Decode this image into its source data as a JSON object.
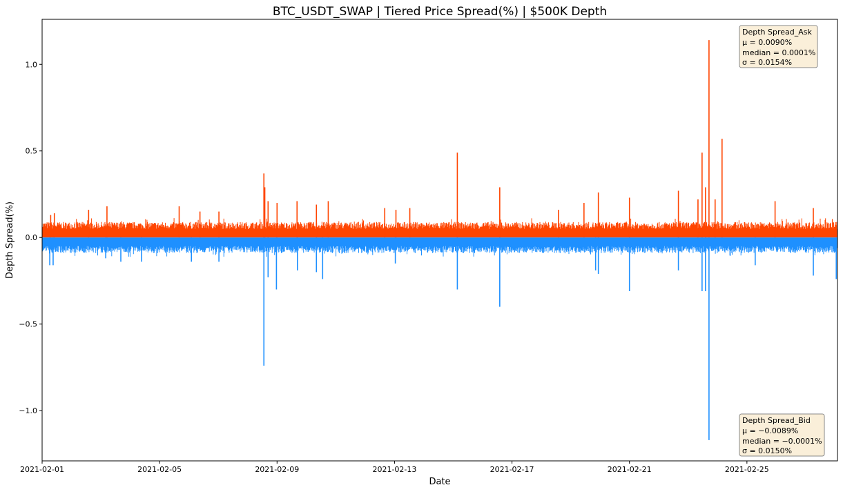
{
  "chart_data": {
    "type": "line",
    "title": "BTC_USDT_SWAP | Tiered Price Spread(%) | $500K Depth",
    "xlabel": "Date",
    "ylabel": "Depth Spread(%)",
    "xlim": [
      "2021-02-01 00:00",
      "2021-02-28 02:00"
    ],
    "ylim": [
      -1.29,
      1.26
    ],
    "x_ticks": [
      "2021-02-01",
      "2021-02-05",
      "2021-02-09",
      "2021-02-13",
      "2021-02-17",
      "2021-02-21",
      "2021-02-25"
    ],
    "y_ticks": [
      -1.0,
      -0.5,
      0.0,
      0.5,
      1.0
    ],
    "y_tick_labels": [
      "−1.0",
      "−0.5",
      "0.0",
      "0.5",
      "1.0"
    ],
    "grid": false,
    "series": [
      {
        "name": "Depth Spread_Ask",
        "color": "#ff4500",
        "typical_range": [
          0.0,
          0.09
        ],
        "peaks": [
          [
            "2021-02-01 07:00",
            0.13
          ],
          [
            "2021-02-01 10:00",
            0.14
          ],
          [
            "2021-02-02 14:00",
            0.16
          ],
          [
            "2021-02-03 05:00",
            0.18
          ],
          [
            "2021-02-05 16:00",
            0.18
          ],
          [
            "2021-02-06 09:00",
            0.15
          ],
          [
            "2021-02-07 00:30",
            0.15
          ],
          [
            "2021-02-08 13:15",
            0.37
          ],
          [
            "2021-02-08 14:00",
            0.29
          ],
          [
            "2021-02-08 16:40",
            0.21
          ],
          [
            "2021-02-09 00:00",
            0.2
          ],
          [
            "2021-02-09 16:20",
            0.21
          ],
          [
            "2021-02-10 08:10",
            0.19
          ],
          [
            "2021-02-10 17:50",
            0.21
          ],
          [
            "2021-02-12 16:00",
            0.17
          ],
          [
            "2021-02-13 01:10",
            0.16
          ],
          [
            "2021-02-13 12:30",
            0.17
          ],
          [
            "2021-02-15 03:20",
            0.49
          ],
          [
            "2021-02-16 14:00",
            0.29
          ],
          [
            "2021-02-18 14:00",
            0.16
          ],
          [
            "2021-02-19 10:50",
            0.2
          ],
          [
            "2021-02-19 22:35",
            0.26
          ],
          [
            "2021-02-21 00:00",
            0.23
          ],
          [
            "2021-02-22 16:00",
            0.27
          ],
          [
            "2021-02-23 08:00",
            0.22
          ],
          [
            "2021-02-23 11:20",
            0.49
          ],
          [
            "2021-02-23 14:10",
            0.29
          ],
          [
            "2021-02-23 17:00",
            1.14
          ],
          [
            "2021-02-23 22:00",
            0.22
          ],
          [
            "2021-02-24 03:40",
            0.57
          ],
          [
            "2021-02-25 23:00",
            0.21
          ],
          [
            "2021-02-27 06:15",
            0.17
          ]
        ],
        "stats": {
          "label": "Depth Spread_Ask",
          "mean": "μ = 0.0090%",
          "median": "median = 0.0001%",
          "std": "σ = 0.0154%"
        }
      },
      {
        "name": "Depth Spread_Bid",
        "color": "#1e90ff",
        "typical_range": [
          -0.09,
          0.0
        ],
        "peaks": [
          [
            "2021-02-01 06:15",
            -0.16
          ],
          [
            "2021-02-01 09:00",
            -0.16
          ],
          [
            "2021-02-03 04:00",
            -0.12
          ],
          [
            "2021-02-03 16:20",
            -0.14
          ],
          [
            "2021-02-04 09:20",
            -0.14
          ],
          [
            "2021-02-06 02:00",
            -0.14
          ],
          [
            "2021-02-07 00:30",
            -0.14
          ],
          [
            "2021-02-08 13:15",
            -0.74
          ],
          [
            "2021-02-08 16:40",
            -0.23
          ],
          [
            "2021-02-08 23:30",
            -0.3
          ],
          [
            "2021-02-09 16:40",
            -0.19
          ],
          [
            "2021-02-10 08:10",
            -0.2
          ],
          [
            "2021-02-10 13:15",
            -0.24
          ],
          [
            "2021-02-13 00:40",
            -0.15
          ],
          [
            "2021-02-15 03:20",
            -0.3
          ],
          [
            "2021-02-16 14:00",
            -0.4
          ],
          [
            "2021-02-19 20:20",
            -0.19
          ],
          [
            "2021-02-19 22:35",
            -0.21
          ],
          [
            "2021-02-21 00:00",
            -0.31
          ],
          [
            "2021-02-22 16:00",
            -0.19
          ],
          [
            "2021-02-23 11:20",
            -0.31
          ],
          [
            "2021-02-23 14:10",
            -0.31
          ],
          [
            "2021-02-23 17:00",
            -1.17
          ],
          [
            "2021-02-25 06:45",
            -0.16
          ],
          [
            "2021-02-27 06:15",
            -0.22
          ],
          [
            "2021-02-28 01:00",
            -0.24
          ]
        ],
        "stats": {
          "label": "Depth Spread_Bid",
          "mean": "μ = −0.0089%",
          "median": "median = −0.0001%",
          "std": "σ = 0.0150%"
        }
      }
    ],
    "stat_box_color": "#f5deb3"
  }
}
